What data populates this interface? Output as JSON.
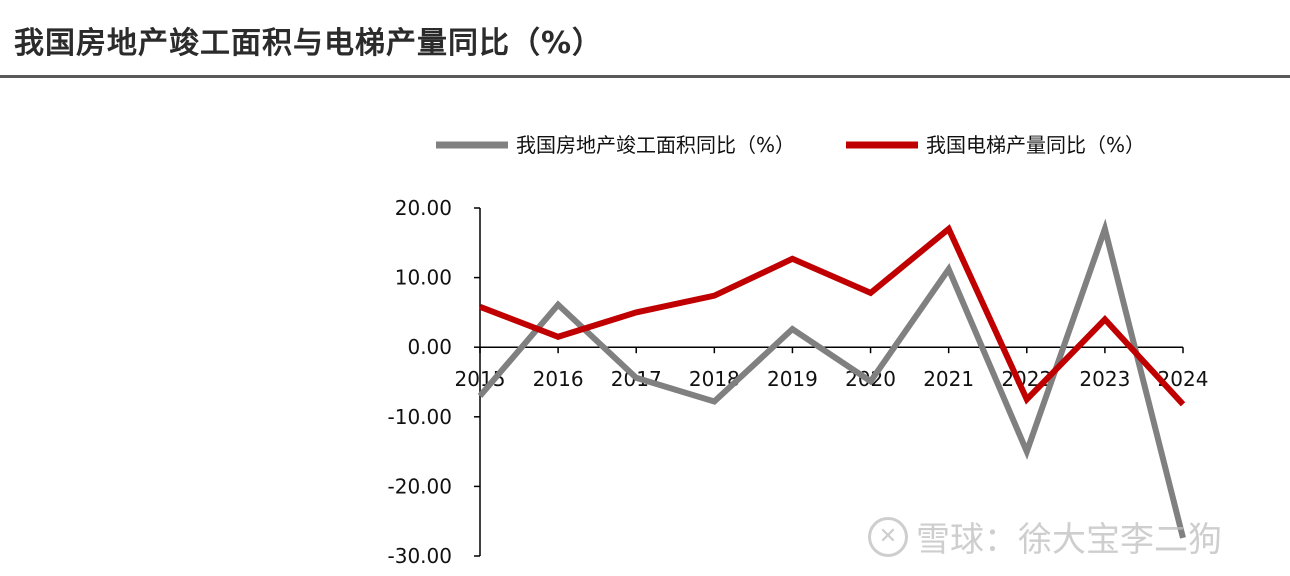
{
  "title": "我国房地产竣工面积与电梯产量同比（%）",
  "watermark": {
    "icon_glyph": "✕",
    "text": "雪球：徐大宝李二狗"
  },
  "chart_data": {
    "type": "line",
    "title": "我国房地产竣工面积与电梯产量同比（%）",
    "x": [
      "2015",
      "2016",
      "2017",
      "2018",
      "2019",
      "2020",
      "2021",
      "2022",
      "2023",
      "2024"
    ],
    "yticks": [
      "20.00",
      "10.00",
      "0.00",
      "-10.00",
      "-20.00",
      "-30.00"
    ],
    "ylim": [
      -30,
      20
    ],
    "grid": false,
    "legend_position": "top",
    "series": [
      {
        "name": "我国房地产竣工面积同比（%）",
        "color": "#808080",
        "values": [
          -7.0,
          6.1,
          -4.4,
          -7.8,
          2.6,
          -4.9,
          11.2,
          -15.0,
          17.0,
          -27.4
        ]
      },
      {
        "name": "我国电梯产量同比（%）",
        "color": "#C00000",
        "values": [
          5.8,
          1.5,
          5.0,
          7.4,
          12.7,
          7.8,
          17.0,
          -7.5,
          4.0,
          -8.2
        ]
      }
    ]
  }
}
